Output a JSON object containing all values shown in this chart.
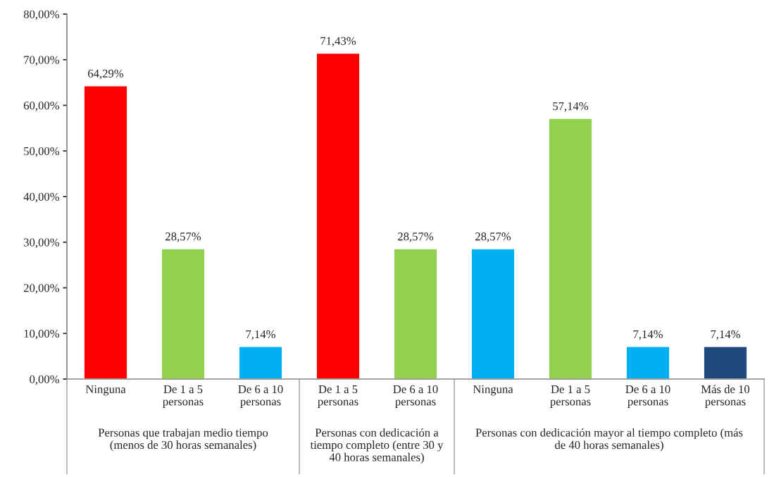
{
  "chart_data": {
    "type": "bar",
    "categories": [
      "Ninguna",
      "De 1 a 5\npersonas",
      "De 6 a 10\npersonas",
      "De 1 a 5\npersonas",
      "De 6 a 10\npersonas",
      "Ninguna",
      "De 1 a 5\npersonas",
      "De 6 a 10\npersonas",
      "Más de 10\npersonas"
    ],
    "values": [
      64.29,
      28.57,
      7.14,
      71.43,
      28.57,
      28.57,
      57.14,
      7.14,
      7.14
    ],
    "value_labels": [
      "64,29%",
      "28,57%",
      "7,14%",
      "71,43%",
      "28,57%",
      "28,57%",
      "57,14%",
      "7,14%",
      "7,14%"
    ],
    "colors": [
      "#ff0000",
      "#92d050",
      "#00b0f0",
      "#ff0000",
      "#92d050",
      "#00b0f0",
      "#92d050",
      "#00b0f0",
      "#1f497d"
    ],
    "ylim": [
      0,
      80
    ],
    "yticks": [
      {
        "value": 0,
        "label": "0,00%"
      },
      {
        "value": 10,
        "label": "10,00%"
      },
      {
        "value": 20,
        "label": "20,00%"
      },
      {
        "value": 30,
        "label": "30,00%"
      },
      {
        "value": 40,
        "label": "40,00%"
      },
      {
        "value": 50,
        "label": "50,00%"
      },
      {
        "value": 60,
        "label": "60,00%"
      },
      {
        "value": 70,
        "label": "70,00%"
      },
      {
        "value": 80,
        "label": "80,00%"
      }
    ],
    "annotations": [
      "Personas que trabajan medio tiempo\n(menos de 30 horas semanales)",
      "Personas con dedicación a\ntiempo completo (entre 30 y\n40 horas semanales)",
      "Personas con dedicación mayor al tiempo completo (más\nde 40 horas semanales)"
    ]
  }
}
